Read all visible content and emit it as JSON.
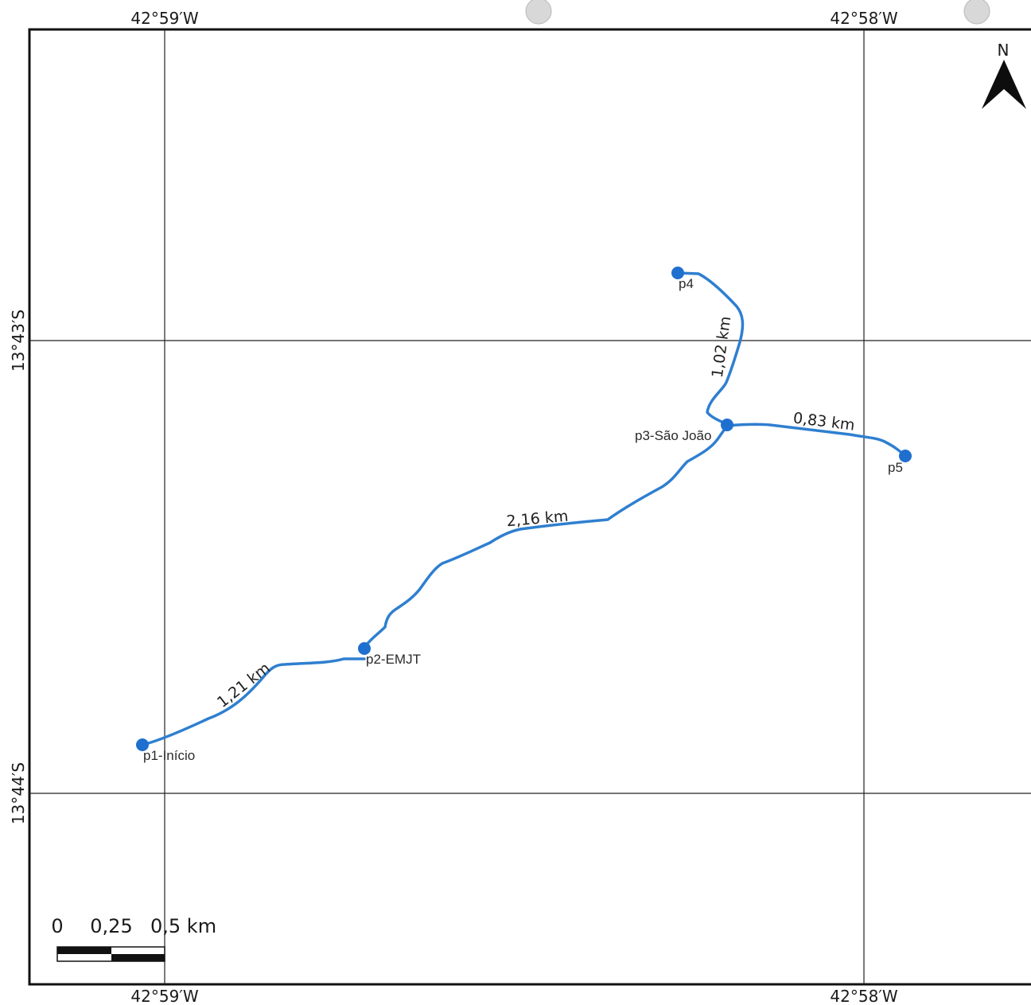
{
  "grid": {
    "top_labels": [
      "42°59′W",
      "42°58′W"
    ],
    "bottom_labels": [
      "42°59′W",
      "42°58′W"
    ],
    "left_labels": [
      "13°43′S",
      "13°44′S"
    ]
  },
  "north_arrow": {
    "label": "N",
    "icon": "north-arrow-icon"
  },
  "points": [
    {
      "id": "p1",
      "label": "p1-Início"
    },
    {
      "id": "p2",
      "label": "p2-EMJT"
    },
    {
      "id": "p3",
      "label": "p3-São João"
    },
    {
      "id": "p4",
      "label": "p4"
    },
    {
      "id": "p5",
      "label": "p5"
    }
  ],
  "segments": [
    {
      "from": "p1",
      "to": "p2",
      "label": "1,21 km"
    },
    {
      "from": "p2",
      "to": "p3",
      "label": "2,16 km"
    },
    {
      "from": "p3",
      "to": "p4",
      "label": "1,02 km"
    },
    {
      "from": "p3",
      "to": "p5",
      "label": "0,83 km"
    }
  ],
  "scale_bar": {
    "labels": [
      "0",
      "0,25",
      "0,5 km"
    ]
  },
  "colors": {
    "route": "#2f7fd0",
    "point": "#1f6fcf",
    "frame": "#111111"
  }
}
